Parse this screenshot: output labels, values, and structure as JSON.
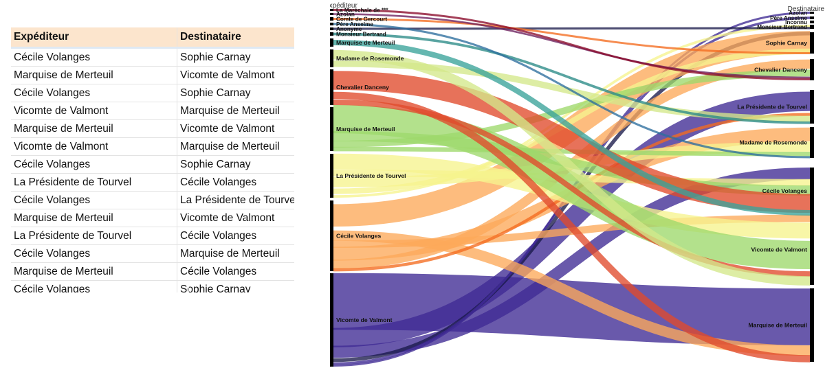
{
  "sheet": {
    "headers": [
      "Expéditeur",
      "Destinataire"
    ],
    "rows": [
      [
        "Cécile Volanges",
        "Sophie Carnay"
      ],
      [
        "Marquise de Merteuil",
        "Vicomte de Valmont"
      ],
      [
        "Cécile Volanges",
        "Sophie Carnay"
      ],
      [
        "Vicomte de Valmont",
        "Marquise de Merteuil"
      ],
      [
        "Marquise de Merteuil",
        "Vicomte de Valmont"
      ],
      [
        "Vicomte de Valmont",
        "Marquise de Merteuil"
      ],
      [
        "Cécile Volanges",
        "Sophie Carnay"
      ],
      [
        "La Présidente de Tourvel",
        "Cécile Volanges"
      ],
      [
        "Cécile Volanges",
        "La Présidente de Tourvel"
      ],
      [
        "Marquise de Merteuil",
        "Vicomte de Valmont"
      ],
      [
        "La Présidente de Tourvel",
        "Cécile Volanges"
      ],
      [
        "Cécile Volanges",
        "Marquise de Merteuil"
      ],
      [
        "Marquise de Merteuil",
        "Cécile Volanges"
      ],
      [
        "Cécile Volanges",
        "Sophie Carnay"
      ]
    ]
  },
  "sankey": {
    "left_header": "Expéditeur",
    "right_header": "Destinataire",
    "left_nodes": [
      {
        "name": "La Maréchale de ***",
        "color": "#8b0a2a"
      },
      {
        "name": "Azolan",
        "color": "#6b1f5e"
      },
      {
        "name": "Comte de Gercourt",
        "color": "#f36b1f"
      },
      {
        "name": "Père Anselme",
        "color": "#2d6e9e"
      },
      {
        "name": "Anonyme",
        "color": "#1a1a4a"
      },
      {
        "name": "Monsieur Bertrand",
        "color": "#2a8a86"
      },
      {
        "name": "Marquise de Merteuil",
        "color": "#3aa39a"
      },
      {
        "name": "Madame de Rosemonde",
        "color": "#d4e88a"
      },
      {
        "name": "Chevalier Danceny",
        "color": "#e04a2c"
      },
      {
        "name": "Marquise de Merteuil",
        "color": "#9ed86b"
      },
      {
        "name": "La Présidente de Tourvel",
        "color": "#f6f48e"
      },
      {
        "name": "Cécile Volanges",
        "color": "#fca95a"
      },
      {
        "name": "Vicomte de Valmont",
        "color": "#3f2a94"
      }
    ],
    "right_nodes": [
      {
        "name": "Azolan"
      },
      {
        "name": "Père Anselme"
      },
      {
        "name": "Inconnu"
      },
      {
        "name": "Monsieur Bertrand"
      },
      {
        "name": "Sophie Carnay"
      },
      {
        "name": "Chevalier Danceny"
      },
      {
        "name": "La Présidente de Tourvel"
      },
      {
        "name": "Madame de Rosemonde"
      },
      {
        "name": "Cécile Volanges"
      },
      {
        "name": "Vicomte de Valmont"
      },
      {
        "name": "Marquise de Merteuil"
      }
    ],
    "links": [
      {
        "from": 12,
        "to": 10,
        "value": 14,
        "color": "#3f2a94"
      },
      {
        "from": 12,
        "to": 6,
        "value": 4,
        "color": "#3f2a94"
      },
      {
        "from": 12,
        "to": 8,
        "value": 3,
        "color": "#3f2a94"
      },
      {
        "from": 12,
        "to": 4,
        "value": 1.2,
        "color": "#1a1a4a"
      },
      {
        "from": 12,
        "to": 1,
        "value": 0.5,
        "color": "#3f2a94"
      },
      {
        "from": 12,
        "to": 0,
        "value": 0.5,
        "color": "#3f2a94"
      },
      {
        "from": 11,
        "to": 4,
        "value": 7,
        "color": "#fca95a"
      },
      {
        "from": 11,
        "to": 10,
        "value": 2.5,
        "color": "#fca95a"
      },
      {
        "from": 11,
        "to": 9,
        "value": 1.5,
        "color": "#fca95a"
      },
      {
        "from": 11,
        "to": 7,
        "value": 3,
        "color": "#fca95a"
      },
      {
        "from": 11,
        "to": 5,
        "value": 2,
        "color": "#fca95a"
      },
      {
        "from": 11,
        "to": 6,
        "value": 0.6,
        "color": "#f36b1f"
      },
      {
        "from": 10,
        "to": 9,
        "value": 3,
        "color": "#f6f48e"
      },
      {
        "from": 10,
        "to": 8,
        "value": 1.5,
        "color": "#f6f48e"
      },
      {
        "from": 10,
        "to": 7,
        "value": 2,
        "color": "#f6f48e"
      },
      {
        "from": 10,
        "to": 4,
        "value": 1.5,
        "color": "#f6f48e"
      },
      {
        "from": 10,
        "to": 3,
        "value": 0.5,
        "color": "#f6f48e"
      },
      {
        "from": 9,
        "to": 9,
        "value": 6,
        "color": "#9ed86b"
      },
      {
        "from": 9,
        "to": 8,
        "value": 2.5,
        "color": "#9ed86b"
      },
      {
        "from": 9,
        "to": 5,
        "value": 1.5,
        "color": "#9ed86b"
      },
      {
        "from": 9,
        "to": 7,
        "value": 1,
        "color": "#9ed86b"
      },
      {
        "from": 8,
        "to": 8,
        "value": 4,
        "color": "#e04a2c"
      },
      {
        "from": 8,
        "to": 10,
        "value": 1.5,
        "color": "#e04a2c"
      },
      {
        "from": 8,
        "to": 9,
        "value": 1,
        "color": "#e04a2c"
      },
      {
        "from": 7,
        "to": 9,
        "value": 1.5,
        "color": "#d4e88a"
      },
      {
        "from": 7,
        "to": 6,
        "value": 1,
        "color": "#d4e88a"
      },
      {
        "from": 6,
        "to": 8,
        "value": 0.7,
        "color": "#3aa39a"
      },
      {
        "from": 5,
        "to": 6,
        "value": 0.3,
        "color": "#2a8a86"
      },
      {
        "from": 4,
        "to": 3,
        "value": 0.3,
        "color": "#1a1a4a"
      },
      {
        "from": 3,
        "to": 7,
        "value": 0.3,
        "color": "#2d6e9e"
      },
      {
        "from": 2,
        "to": 4,
        "value": 0.3,
        "color": "#f36b1f"
      },
      {
        "from": 1,
        "to": 5,
        "value": 0.3,
        "color": "#6b1f5e"
      },
      {
        "from": 0,
        "to": 5,
        "value": 0.4,
        "color": "#8b0a2a"
      }
    ]
  }
}
